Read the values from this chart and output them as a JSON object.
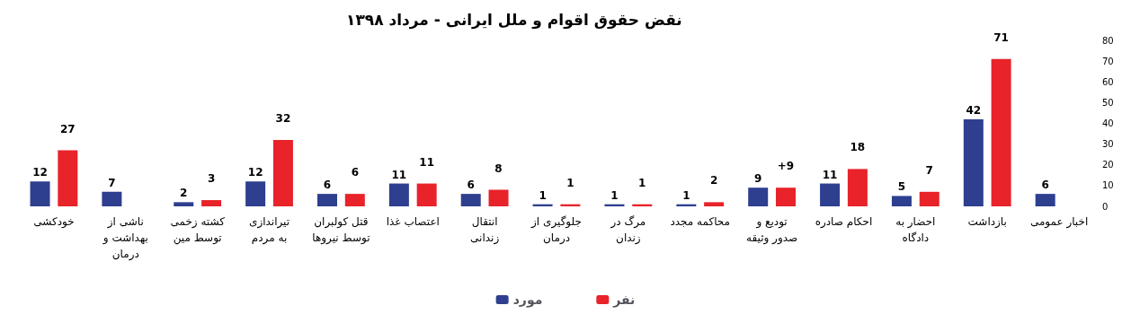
{
  "chart_data": {
    "type": "bar",
    "title": "نقض حقوق اقوام و ملل ایرانی - مرداد ۱۳۹۸",
    "categories": [
      "خودکشی",
      "ناشی از بهداشت و درمان",
      "کشته زخمی توسط مین",
      "تیراندازی به مردم",
      "قتل کولبران توسط نیروها",
      "اعتصاب غذا",
      "انتقال زندانی",
      "جلوگیری از درمان",
      "مرگ در زندان",
      "محاکمه مجدد",
      "توديع و صدور وثیقه",
      "احکام صادره",
      "احضار به دادگاه",
      "بازداشت",
      "اخبار عمومی"
    ],
    "series": [
      {
        "name": "مورد",
        "color": "#2e3f8f",
        "values": [
          12,
          7,
          2,
          12,
          6,
          11,
          6,
          1,
          1,
          1,
          9,
          11,
          5,
          42,
          6
        ],
        "value_labels": [
          "12",
          "7",
          "2",
          "12",
          "6",
          "11",
          "6",
          "1",
          "1",
          "1",
          "9",
          "11",
          "5",
          "42",
          "6"
        ]
      },
      {
        "name": "نفر",
        "color": "#e8232a",
        "values": [
          27,
          null,
          3,
          32,
          6,
          11,
          8,
          1,
          1,
          2,
          9,
          18,
          7,
          71,
          null
        ],
        "value_labels": [
          "27",
          null,
          "3",
          "32",
          "6",
          "11",
          "8",
          "1",
          "1",
          "2",
          "+9",
          "18",
          "7",
          "71",
          null
        ]
      }
    ],
    "ylim": [
      0,
      80
    ],
    "yticks": [
      0,
      10,
      20,
      30,
      40,
      50,
      60,
      70,
      80
    ],
    "grid": false,
    "legend": "bottom"
  }
}
